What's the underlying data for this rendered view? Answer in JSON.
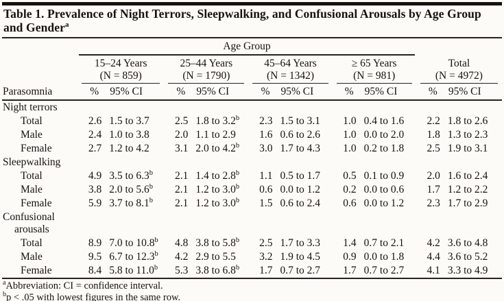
{
  "colors": {
    "background": "#fcfbf8",
    "text": "#17120d",
    "rule": "#26211b"
  },
  "title": {
    "text": "Table 1. Prevalence of Night Terrors, Sleepwalking, and Confusional Arousals by Age Group and Gender",
    "superscript": "a"
  },
  "table": {
    "age_group_label": "Age Group",
    "row_header": "Parasomnia",
    "subheader": {
      "percent": "%",
      "ci": "95% CI"
    },
    "column_groups": [
      {
        "label": "15–24 Years",
        "n_label": "(N = 859)"
      },
      {
        "label": "25–44 Years",
        "n_label": "(N = 1790)"
      },
      {
        "label": "45–64 Years",
        "n_label": "(N = 1342)"
      },
      {
        "label": "≥ 65 Years",
        "n_label": "(N = 981)"
      },
      {
        "label": "Total",
        "n_label": "(N = 4972)"
      }
    ],
    "sections": [
      {
        "name": "Night terrors",
        "rows": [
          {
            "label": "Total",
            "cells": [
              {
                "pct": "2.6",
                "ci": "1.5 to 3.7"
              },
              {
                "pct": "2.5",
                "ci": "1.8 to 3.2",
                "sup": "b"
              },
              {
                "pct": "2.3",
                "ci": "1.5 to 3.1"
              },
              {
                "pct": "1.0",
                "ci": "0.4 to 1.6"
              },
              {
                "pct": "2.2",
                "ci": "1.8 to 2.6"
              }
            ]
          },
          {
            "label": "Male",
            "cells": [
              {
                "pct": "2.4",
                "ci": "1.0 to 3.8"
              },
              {
                "pct": "2.0",
                "ci": "1.1 to 2.9"
              },
              {
                "pct": "1.6",
                "ci": "0.6 to 2.6"
              },
              {
                "pct": "1.0",
                "ci": "0.0 to 2.0"
              },
              {
                "pct": "1.8",
                "ci": "1.3 to 2.3"
              }
            ]
          },
          {
            "label": "Female",
            "cells": [
              {
                "pct": "2.7",
                "ci": "1.2 to 4.2"
              },
              {
                "pct": "3.1",
                "ci": "2.0 to 4.2",
                "sup": "b"
              },
              {
                "pct": "3.0",
                "ci": "1.7 to 4.3"
              },
              {
                "pct": "1.0",
                "ci": "0.2 to 1.8"
              },
              {
                "pct": "2.5",
                "ci": "1.9 to 3.1"
              }
            ]
          }
        ]
      },
      {
        "name": "Sleepwalking",
        "rows": [
          {
            "label": "Total",
            "cells": [
              {
                "pct": "4.9",
                "ci": "3.5 to 6.3",
                "sup": "b"
              },
              {
                "pct": "2.1",
                "ci": "1.4 to 2.8",
                "sup": "b"
              },
              {
                "pct": "1.1",
                "ci": "0.5 to 1.7"
              },
              {
                "pct": "0.5",
                "ci": "0.1 to 0.9"
              },
              {
                "pct": "2.0",
                "ci": "1.6 to 2.4"
              }
            ]
          },
          {
            "label": "Male",
            "cells": [
              {
                "pct": "3.8",
                "ci": "2.0 to 5.6",
                "sup": "b"
              },
              {
                "pct": "2.1",
                "ci": "1.2 to 3.0",
                "sup": "b"
              },
              {
                "pct": "0.6",
                "ci": "0.0 to 1.2"
              },
              {
                "pct": "0.2",
                "ci": "0.0 to 0.6"
              },
              {
                "pct": "1.7",
                "ci": "1.2 to 2.2"
              }
            ]
          },
          {
            "label": "Female",
            "cells": [
              {
                "pct": "5.9",
                "ci": "3.7 to 8.1",
                "sup": "b"
              },
              {
                "pct": "2.1",
                "ci": "1.2 to 3.0",
                "sup": "b"
              },
              {
                "pct": "1.5",
                "ci": "0.6 to 2.4"
              },
              {
                "pct": "0.6",
                "ci": "0.0 to 1.2"
              },
              {
                "pct": "2.3",
                "ci": "1.7 to 2.9"
              }
            ]
          }
        ]
      },
      {
        "name": "Confusional arousals",
        "rows": [
          {
            "label": "Total",
            "cells": [
              {
                "pct": "8.9",
                "ci": "7.0 to 10.8",
                "sup": "b"
              },
              {
                "pct": "4.8",
                "ci": "3.8 to 5.8",
                "sup": "b"
              },
              {
                "pct": "2.5",
                "ci": "1.7 to 3.3"
              },
              {
                "pct": "1.4",
                "ci": "0.7 to 2.1"
              },
              {
                "pct": "4.2",
                "ci": "3.6 to 4.8"
              }
            ]
          },
          {
            "label": "Male",
            "cells": [
              {
                "pct": "9.5",
                "ci": "6.7 to 12.3",
                "sup": "b"
              },
              {
                "pct": "4.2",
                "ci": "2.9 to 5.5"
              },
              {
                "pct": "3.2",
                "ci": "1.9 to 4.5"
              },
              {
                "pct": "0.9",
                "ci": "0.0 to 1.8"
              },
              {
                "pct": "4.4",
                "ci": "3.6 to 5.2"
              }
            ]
          },
          {
            "label": "Female",
            "cells": [
              {
                "pct": "8.4",
                "ci": "5.8 to 11.0",
                "sup": "b"
              },
              {
                "pct": "5.3",
                "ci": "3.8 to 6.8",
                "sup": "b"
              },
              {
                "pct": "1.7",
                "ci": "0.7 to 2.7"
              },
              {
                "pct": "1.7",
                "ci": "0.7 to 2.7"
              },
              {
                "pct": "4.1",
                "ci": "3.3 to 4.9"
              }
            ]
          }
        ]
      }
    ]
  },
  "footnotes": [
    {
      "sup": "a",
      "text": "Abbreviation: CI = confidence interval."
    },
    {
      "sup": "b",
      "text": "p < .05 with lowest figures in the same row."
    }
  ]
}
